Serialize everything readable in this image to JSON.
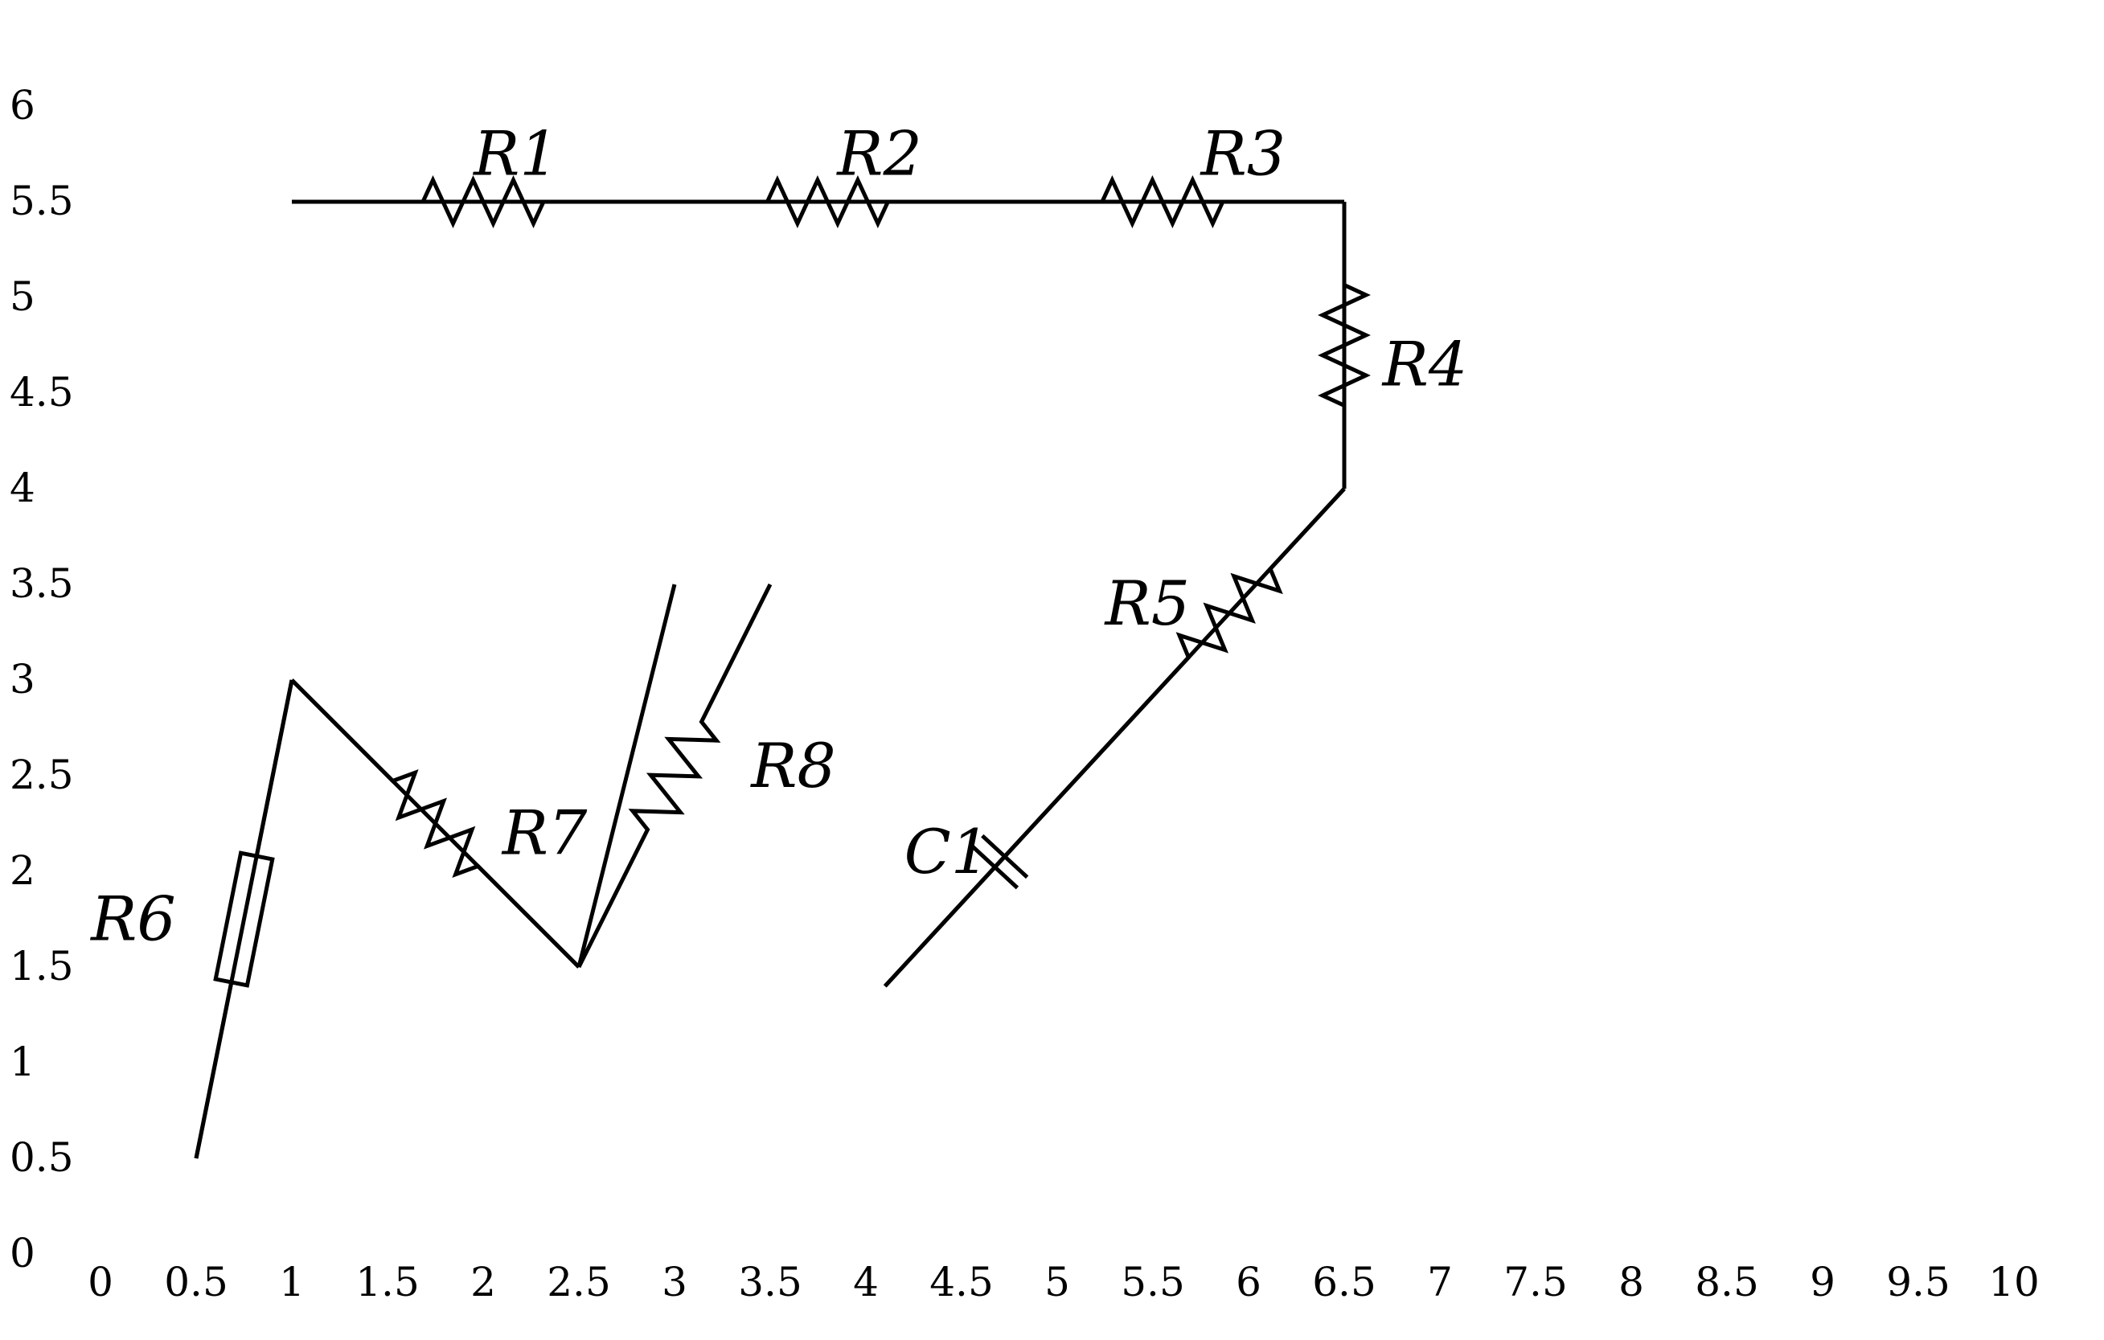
{
  "diagram": {
    "type": "circuit",
    "x_ticks": [
      "0",
      "0.5",
      "1",
      "1.5",
      "2",
      "2.5",
      "3",
      "3.5",
      "4",
      "4.5",
      "5",
      "5.5",
      "6",
      "6.5",
      "7",
      "7.5",
      "8",
      "8.5",
      "9",
      "9.5",
      "10"
    ],
    "y_ticks": [
      "0",
      "0.5",
      "1",
      "1.5",
      "2",
      "2.5",
      "3",
      "3.5",
      "4",
      "4.5",
      "5",
      "5.5",
      "6"
    ],
    "wires": [
      {
        "id": "wire-top",
        "points": [
          [
            1,
            5.5
          ],
          [
            6.5,
            5.5
          ]
        ]
      },
      {
        "id": "wire-right",
        "points": [
          [
            6.5,
            5.5
          ],
          [
            6.5,
            4
          ]
        ]
      },
      {
        "id": "wire-diag",
        "points": [
          [
            6.5,
            4
          ],
          [
            4.1,
            1.4
          ]
        ]
      },
      {
        "id": "wire-left-a",
        "points": [
          [
            0.5,
            0.5
          ],
          [
            1,
            3
          ]
        ]
      },
      {
        "id": "wire-left-b",
        "points": [
          [
            1,
            3
          ],
          [
            2.5,
            1.5
          ]
        ]
      },
      {
        "id": "wire-left-c",
        "points": [
          [
            2.5,
            1.5
          ],
          [
            3,
            3.5
          ]
        ]
      }
    ],
    "components": [
      {
        "id": "R1",
        "type": "resistor",
        "label": "R1",
        "from": [
          1,
          5.5
        ],
        "to": [
          3,
          5.5
        ],
        "label_pos": [
          1.95,
          5.75
        ]
      },
      {
        "id": "R2",
        "type": "resistor",
        "label": "R2",
        "from": [
          3,
          5.5
        ],
        "to": [
          4.6,
          5.5
        ],
        "label_pos": [
          3.85,
          5.75
        ]
      },
      {
        "id": "R3",
        "type": "resistor",
        "label": "R3",
        "from": [
          4.6,
          5.5
        ],
        "to": [
          6.5,
          5.5
        ],
        "label_pos": [
          5.75,
          5.75
        ]
      },
      {
        "id": "R4",
        "type": "resistor",
        "label": "R4",
        "from": [
          6.5,
          5.5
        ],
        "to": [
          6.5,
          4
        ],
        "label_pos": [
          6.7,
          4.65
        ]
      },
      {
        "id": "R5",
        "type": "resistor",
        "label": "R5",
        "from": [
          6.5,
          4
        ],
        "to": [
          5.3,
          2.7
        ],
        "label_pos": [
          5.25,
          3.4
        ]
      },
      {
        "id": "C1",
        "type": "capacitor",
        "label": "C1",
        "from": [
          5.3,
          2.7
        ],
        "to": [
          4.1,
          1.4
        ],
        "label_pos": [
          4.2,
          2.1
        ]
      },
      {
        "id": "R6",
        "type": "resistor-box",
        "label": "R6",
        "from": [
          0.5,
          0.5
        ],
        "to": [
          1,
          3
        ],
        "label_pos": [
          -0.05,
          1.75
        ]
      },
      {
        "id": "R7",
        "type": "resistor",
        "label": "R7",
        "from": [
          1,
          3
        ],
        "to": [
          2.5,
          1.5
        ],
        "label_pos": [
          2.1,
          2.2
        ]
      },
      {
        "id": "R8",
        "type": "resistor",
        "label": "R8",
        "from": [
          2.5,
          1.5
        ],
        "to": [
          3.5,
          3.5
        ],
        "label_pos": [
          3.4,
          2.55
        ]
      }
    ]
  }
}
